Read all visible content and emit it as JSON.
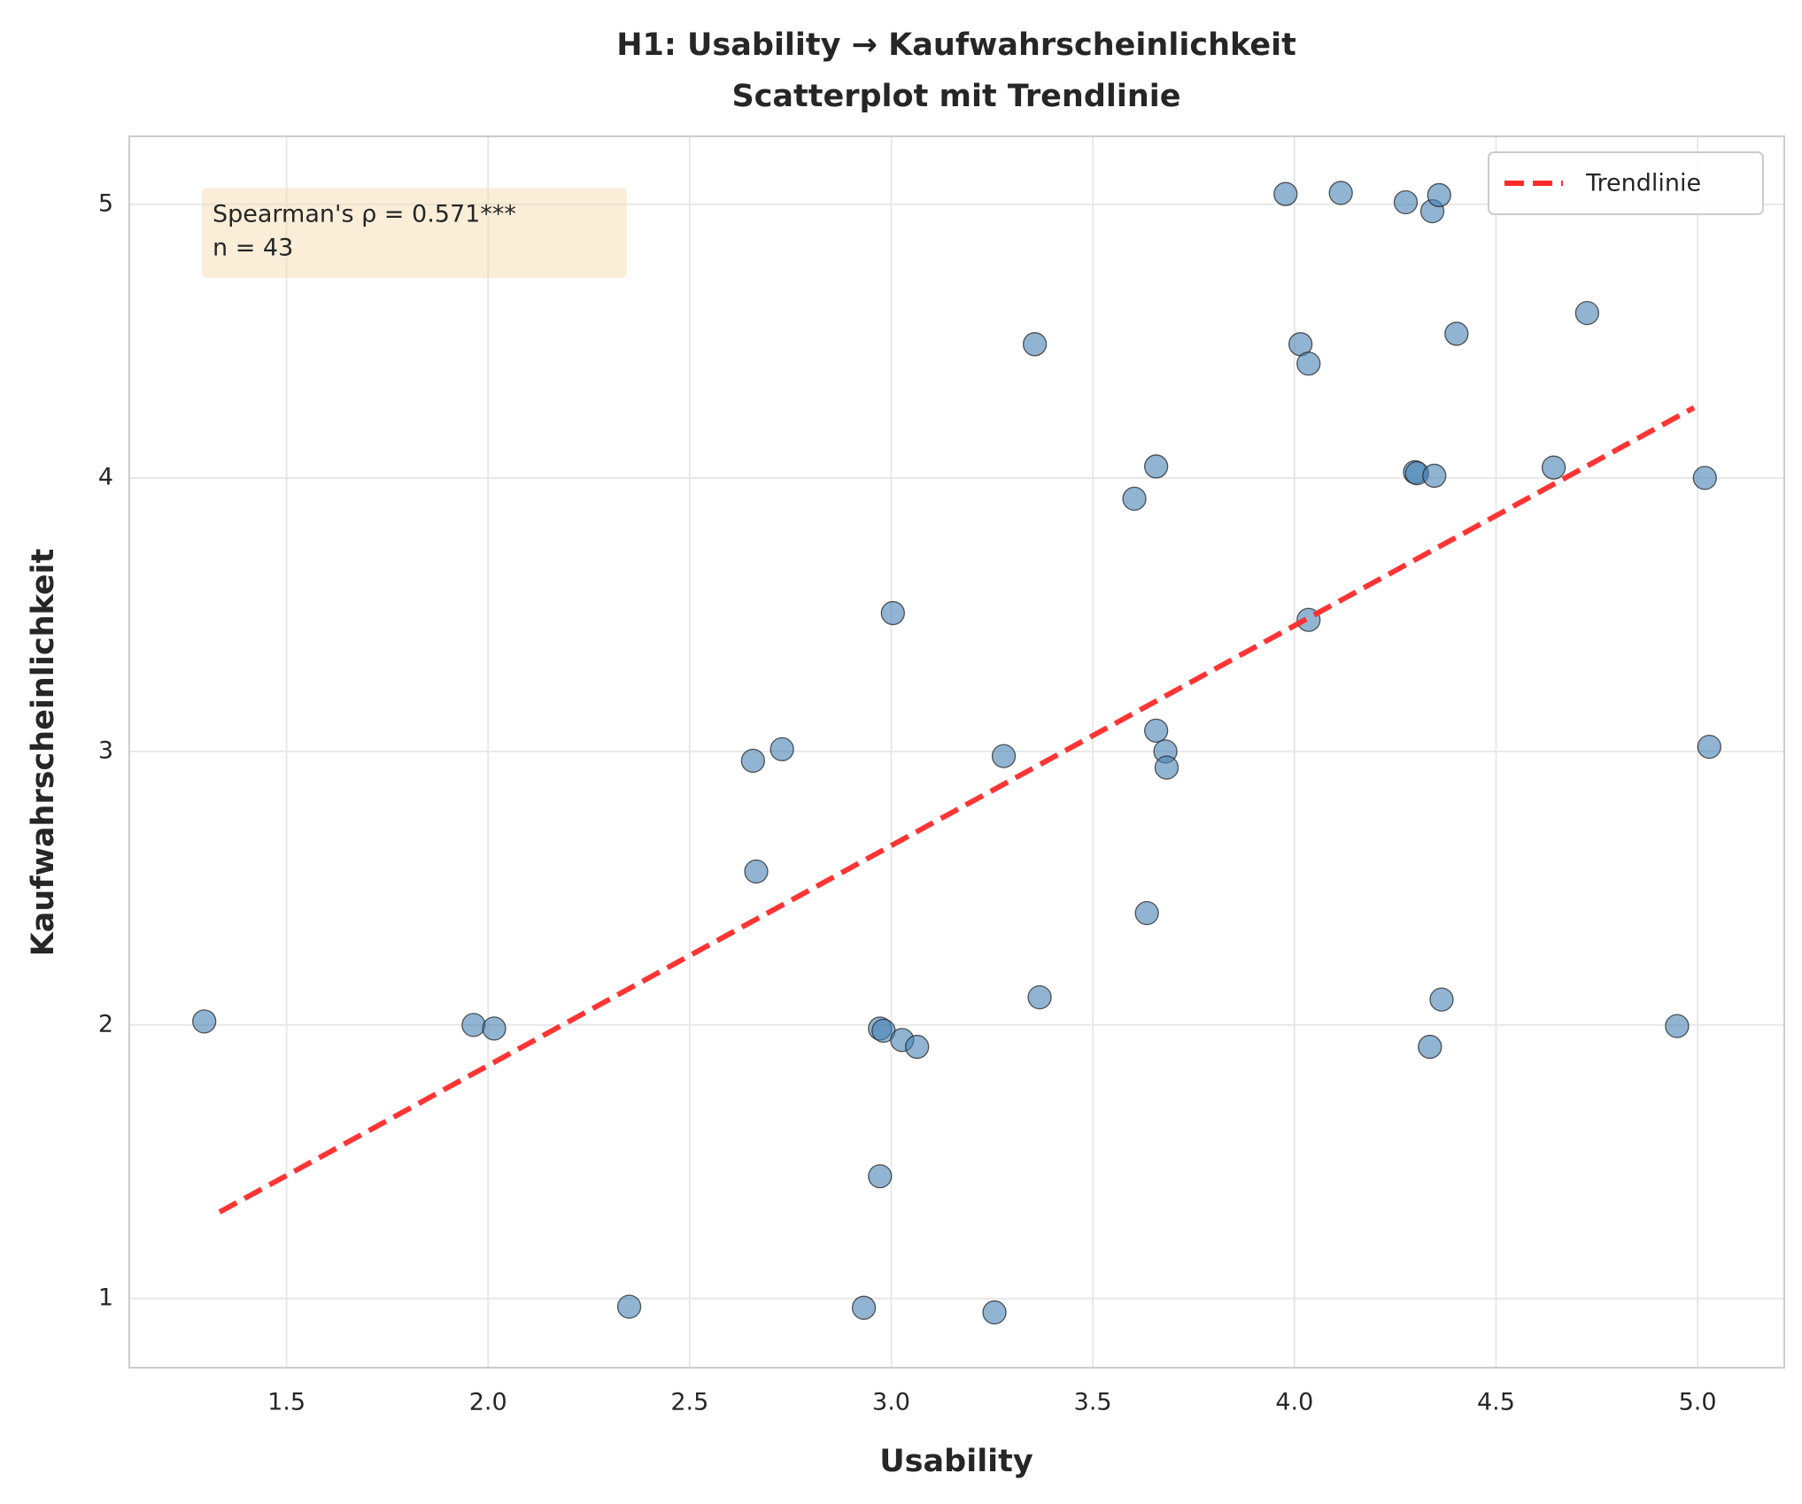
{
  "chart_data": {
    "type": "scatter",
    "title": "H1: Usability → Kaufwahrscheinlichkeit",
    "subtitle": "Scatterplot mit Trendlinie",
    "x_label": "Usability",
    "y_label": "Kaufwahrscheinlichkeit",
    "color": "#4682b4",
    "x": [
      1.296,
      1.964,
      2.015,
      2.35,
      2.657,
      2.729,
      2.665,
      2.932,
      2.972,
      2.972,
      2.981,
      3.027,
      3.064,
      3.004,
      3.256,
      3.279,
      3.356,
      3.368,
      3.603,
      3.657,
      3.634,
      3.657,
      3.68,
      3.683,
      3.978,
      4.015,
      4.035,
      4.035,
      4.115,
      4.276,
      4.342,
      4.359,
      4.299,
      4.304,
      4.347,
      4.402,
      4.365,
      4.336,
      4.643,
      4.726,
      4.949,
      5.018,
      5.029
    ],
    "y": [
      2.013,
      2.0,
      1.987,
      0.97,
      2.966,
      3.008,
      2.561,
      0.966,
      1.447,
      1.987,
      1.979,
      1.945,
      1.92,
      3.506,
      0.949,
      2.983,
      4.489,
      2.101,
      3.924,
      4.042,
      2.409,
      3.076,
      3.0,
      2.941,
      5.038,
      4.489,
      4.418,
      3.481,
      5.042,
      5.008,
      4.975,
      5.034,
      4.021,
      4.017,
      4.008,
      4.527,
      2.093,
      1.92,
      4.038,
      4.603,
      1.996,
      4.0,
      3.017
    ],
    "trendline": {
      "name": "Trendlinie",
      "color": "#ff2a2a",
      "x": [
        1.334,
        4.991
      ],
      "y": [
        1.316,
        4.257
      ]
    },
    "annotation": [
      "Spearman's ρ = 0.571***",
      "n = 43"
    ],
    "xlim": [
      1.11,
      5.215
    ],
    "ylim": [
      0.747,
      5.249
    ],
    "xticks": [
      1.5,
      {
        "value": 2,
        "label": "2.0"
      },
      2.5,
      {
        "value": 3,
        "label": "3.0"
      },
      3.5,
      {
        "value": 4,
        "label": "4.0"
      },
      4.5,
      {
        "value": 5,
        "label": "5.0"
      }
    ],
    "yticks": [
      1,
      2,
      3,
      4,
      5
    ],
    "grid": true,
    "legend": "upper right"
  }
}
